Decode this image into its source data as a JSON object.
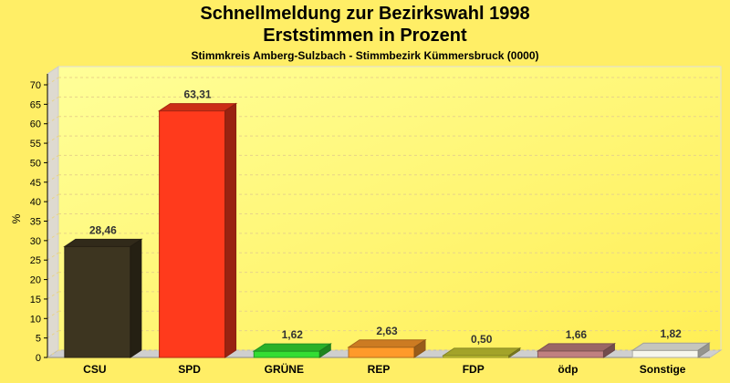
{
  "header": {
    "title_line1": "Schnellmeldung zur Bezirkswahl 1998",
    "title_line2": "Erststimmen in Prozent",
    "subtitle": "Stimmkreis Amberg-Sulzbach - Stimmbezirk Kümmersbruck (0000)"
  },
  "chart_data": {
    "type": "bar",
    "title": "Schnellmeldung zur Bezirkswahl 1998 - Erststimmen in Prozent",
    "subtitle": "Stimmkreis Amberg-Sulzbach - Stimmbezirk Kümmersbruck (0000)",
    "ylabel": "%",
    "xlabel": "",
    "ylim": [
      0,
      70
    ],
    "yticks": [
      0,
      5,
      10,
      15,
      20,
      25,
      30,
      35,
      40,
      45,
      50,
      55,
      60,
      65,
      70
    ],
    "grid": true,
    "legend": "none",
    "categories": [
      "CSU",
      "SPD",
      "GRÜNE",
      "REP",
      "FDP",
      "ödp",
      "Sonstige"
    ],
    "values": [
      28.46,
      63.31,
      1.62,
      2.63,
      0.5,
      1.66,
      1.82
    ],
    "value_labels": [
      "28,46",
      "63,31",
      "1,62",
      "2,63",
      "0,50",
      "1,66",
      "1,82"
    ],
    "colors": [
      "#3d3520",
      "#ff3a1c",
      "#33dd33",
      "#ff9a2a",
      "#cccc33",
      "#c08080",
      "#f6f6ec"
    ]
  }
}
